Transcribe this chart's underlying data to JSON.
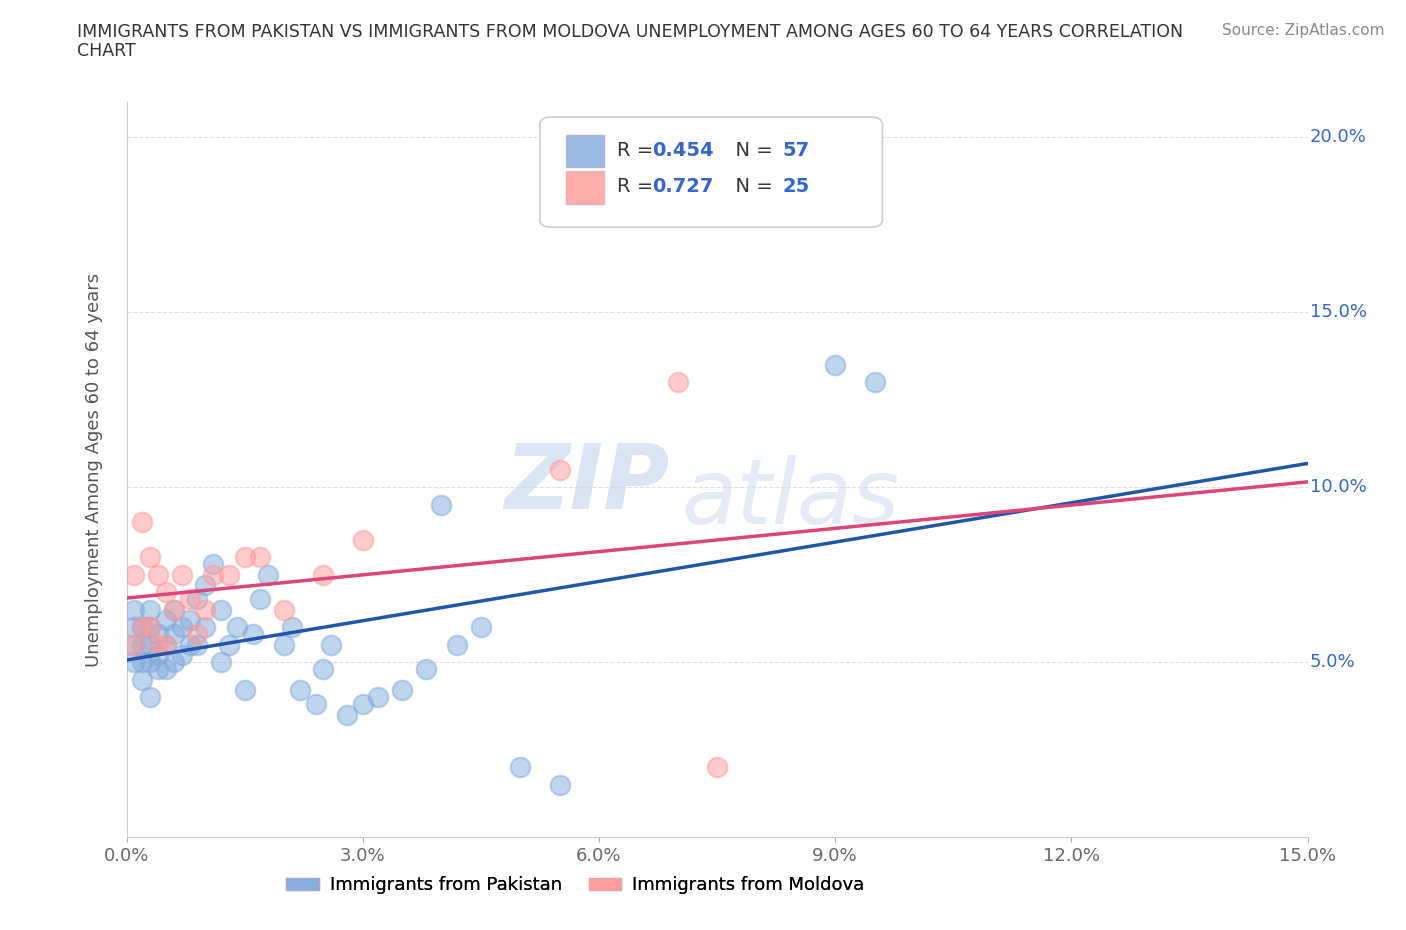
{
  "title_line1": "IMMIGRANTS FROM PAKISTAN VS IMMIGRANTS FROM MOLDOVA UNEMPLOYMENT AMONG AGES 60 TO 64 YEARS CORRELATION",
  "title_line2": "CHART",
  "source": "Source: ZipAtlas.com",
  "ylabel": "Unemployment Among Ages 60 to 64 years",
  "xlim": [
    0.0,
    0.15
  ],
  "ylim": [
    0.0,
    0.21
  ],
  "xticks": [
    0.0,
    0.03,
    0.06,
    0.09,
    0.12,
    0.15
  ],
  "yticks": [
    0.0,
    0.05,
    0.1,
    0.15,
    0.2
  ],
  "xticklabels": [
    "0.0%",
    "3.0%",
    "6.0%",
    "9.0%",
    "12.0%",
    "15.0%"
  ],
  "yticklabels_right": [
    "",
    "5.0%",
    "10.0%",
    "15.0%",
    "20.0%"
  ],
  "pakistan_color": "#80aadd",
  "moldova_color": "#ff9999",
  "pakistan_line_color": "#2255aa",
  "moldova_line_color": "#dd4477",
  "pakistan_R": 0.454,
  "pakistan_N": 57,
  "moldova_R": 0.727,
  "moldova_N": 25,
  "pakistan_x": [
    0.001,
    0.001,
    0.001,
    0.001,
    0.002,
    0.002,
    0.002,
    0.002,
    0.003,
    0.003,
    0.003,
    0.003,
    0.003,
    0.004,
    0.004,
    0.004,
    0.005,
    0.005,
    0.005,
    0.006,
    0.006,
    0.006,
    0.007,
    0.007,
    0.008,
    0.008,
    0.009,
    0.009,
    0.01,
    0.01,
    0.011,
    0.012,
    0.012,
    0.013,
    0.014,
    0.015,
    0.016,
    0.017,
    0.018,
    0.02,
    0.021,
    0.022,
    0.024,
    0.025,
    0.026,
    0.028,
    0.03,
    0.032,
    0.035,
    0.038,
    0.04,
    0.042,
    0.045,
    0.05,
    0.055,
    0.09,
    0.095
  ],
  "pakistan_y": [
    0.05,
    0.055,
    0.06,
    0.065,
    0.045,
    0.05,
    0.055,
    0.06,
    0.04,
    0.05,
    0.055,
    0.06,
    0.065,
    0.048,
    0.052,
    0.058,
    0.048,
    0.055,
    0.062,
    0.05,
    0.058,
    0.065,
    0.052,
    0.06,
    0.055,
    0.062,
    0.055,
    0.068,
    0.06,
    0.072,
    0.078,
    0.05,
    0.065,
    0.055,
    0.06,
    0.042,
    0.058,
    0.068,
    0.075,
    0.055,
    0.06,
    0.042,
    0.038,
    0.048,
    0.055,
    0.035,
    0.038,
    0.04,
    0.042,
    0.048,
    0.095,
    0.055,
    0.06,
    0.02,
    0.015,
    0.135,
    0.13
  ],
  "moldova_x": [
    0.001,
    0.001,
    0.002,
    0.002,
    0.003,
    0.003,
    0.004,
    0.004,
    0.005,
    0.005,
    0.006,
    0.007,
    0.008,
    0.009,
    0.01,
    0.011,
    0.013,
    0.015,
    0.017,
    0.02,
    0.025,
    0.03,
    0.055,
    0.07,
    0.075
  ],
  "moldova_y": [
    0.055,
    0.075,
    0.06,
    0.09,
    0.06,
    0.08,
    0.055,
    0.075,
    0.055,
    0.07,
    0.065,
    0.075,
    0.068,
    0.058,
    0.065,
    0.075,
    0.075,
    0.08,
    0.08,
    0.065,
    0.075,
    0.085,
    0.105,
    0.13,
    0.02
  ],
  "watermark_zip": "ZIP",
  "watermark_atlas": "atlas",
  "background_color": "#ffffff",
  "grid_color": "#dddddd",
  "legend_label_pakistan": "Immigrants from Pakistan",
  "legend_label_moldova": "Immigrants from Moldova"
}
